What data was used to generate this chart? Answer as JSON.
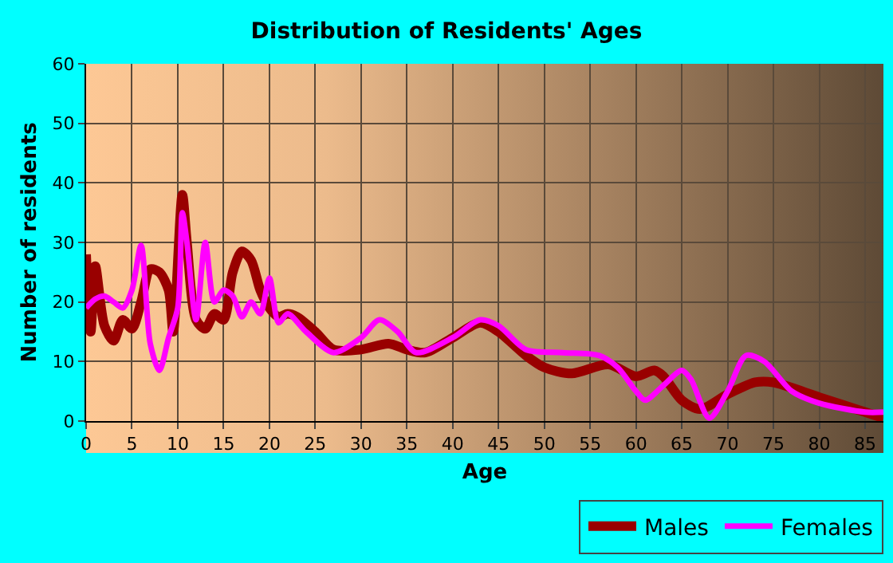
{
  "chart_data": {
    "type": "line",
    "title": "Distribution of Residents' Ages",
    "xlabel": "Age",
    "ylabel": "Number of residents",
    "xlim": [
      0,
      87
    ],
    "xticks": [
      0,
      5,
      10,
      15,
      20,
      25,
      30,
      35,
      40,
      45,
      50,
      55,
      60,
      65,
      70,
      75,
      80,
      85
    ],
    "ylim": [
      0,
      60
    ],
    "yticks": [
      0,
      10,
      20,
      30,
      40,
      50,
      60
    ],
    "grid": true,
    "legend": "bottom right",
    "marker": "none",
    "line_style": "solid",
    "series": [
      {
        "name": "Males",
        "color": "#990000",
        "x": [
          0,
          0.5,
          1,
          2,
          3,
          4,
          5,
          6,
          7,
          8,
          9,
          9.5,
          10.5,
          11,
          12,
          13,
          14,
          15,
          16,
          17,
          18,
          19,
          20,
          21,
          22,
          23,
          25,
          27,
          30,
          33,
          35,
          37,
          40,
          43,
          45,
          48,
          50,
          53,
          57,
          60,
          62,
          63,
          65,
          67,
          70,
          73,
          75,
          80,
          85,
          87
        ],
        "values": [
          28,
          15,
          26,
          16,
          13.5,
          17,
          15.5,
          20,
          25.5,
          25,
          22,
          15,
          38,
          30,
          17,
          15.5,
          18,
          17,
          25,
          28.5,
          27,
          22,
          19,
          17.5,
          18,
          17.5,
          15,
          12,
          12,
          13,
          12,
          11.5,
          14,
          16.5,
          15,
          11,
          9,
          8,
          9.5,
          7.5,
          8.5,
          7.5,
          3.5,
          2,
          4.5,
          6.5,
          6.5,
          4,
          1.5,
          0.5
        ]
      },
      {
        "name": "Females",
        "color": "#ff00ff",
        "x": [
          0,
          1,
          2,
          3,
          4,
          5,
          6,
          7,
          8,
          9,
          10,
          10.5,
          11,
          12,
          13,
          14,
          15,
          16,
          17,
          18,
          19,
          20,
          21,
          22,
          24,
          27,
          30,
          32,
          34,
          36,
          40,
          43,
          45,
          48,
          52,
          56,
          58,
          60,
          61,
          63,
          65,
          66,
          68,
          70,
          72,
          74,
          77,
          80,
          85,
          87
        ],
        "values": [
          19,
          20.5,
          21,
          20,
          19,
          22,
          29.5,
          13,
          8.5,
          14,
          19,
          35,
          30,
          17,
          30,
          20,
          22,
          21,
          17.5,
          20,
          18,
          24,
          16.5,
          18,
          15,
          11.5,
          14,
          17,
          15,
          11.5,
          14,
          17,
          16,
          12,
          11.5,
          11,
          9,
          5,
          3.5,
          6,
          8.5,
          7,
          0.5,
          5,
          11,
          10,
          5,
          3,
          1.5,
          1.5
        ]
      }
    ]
  }
}
